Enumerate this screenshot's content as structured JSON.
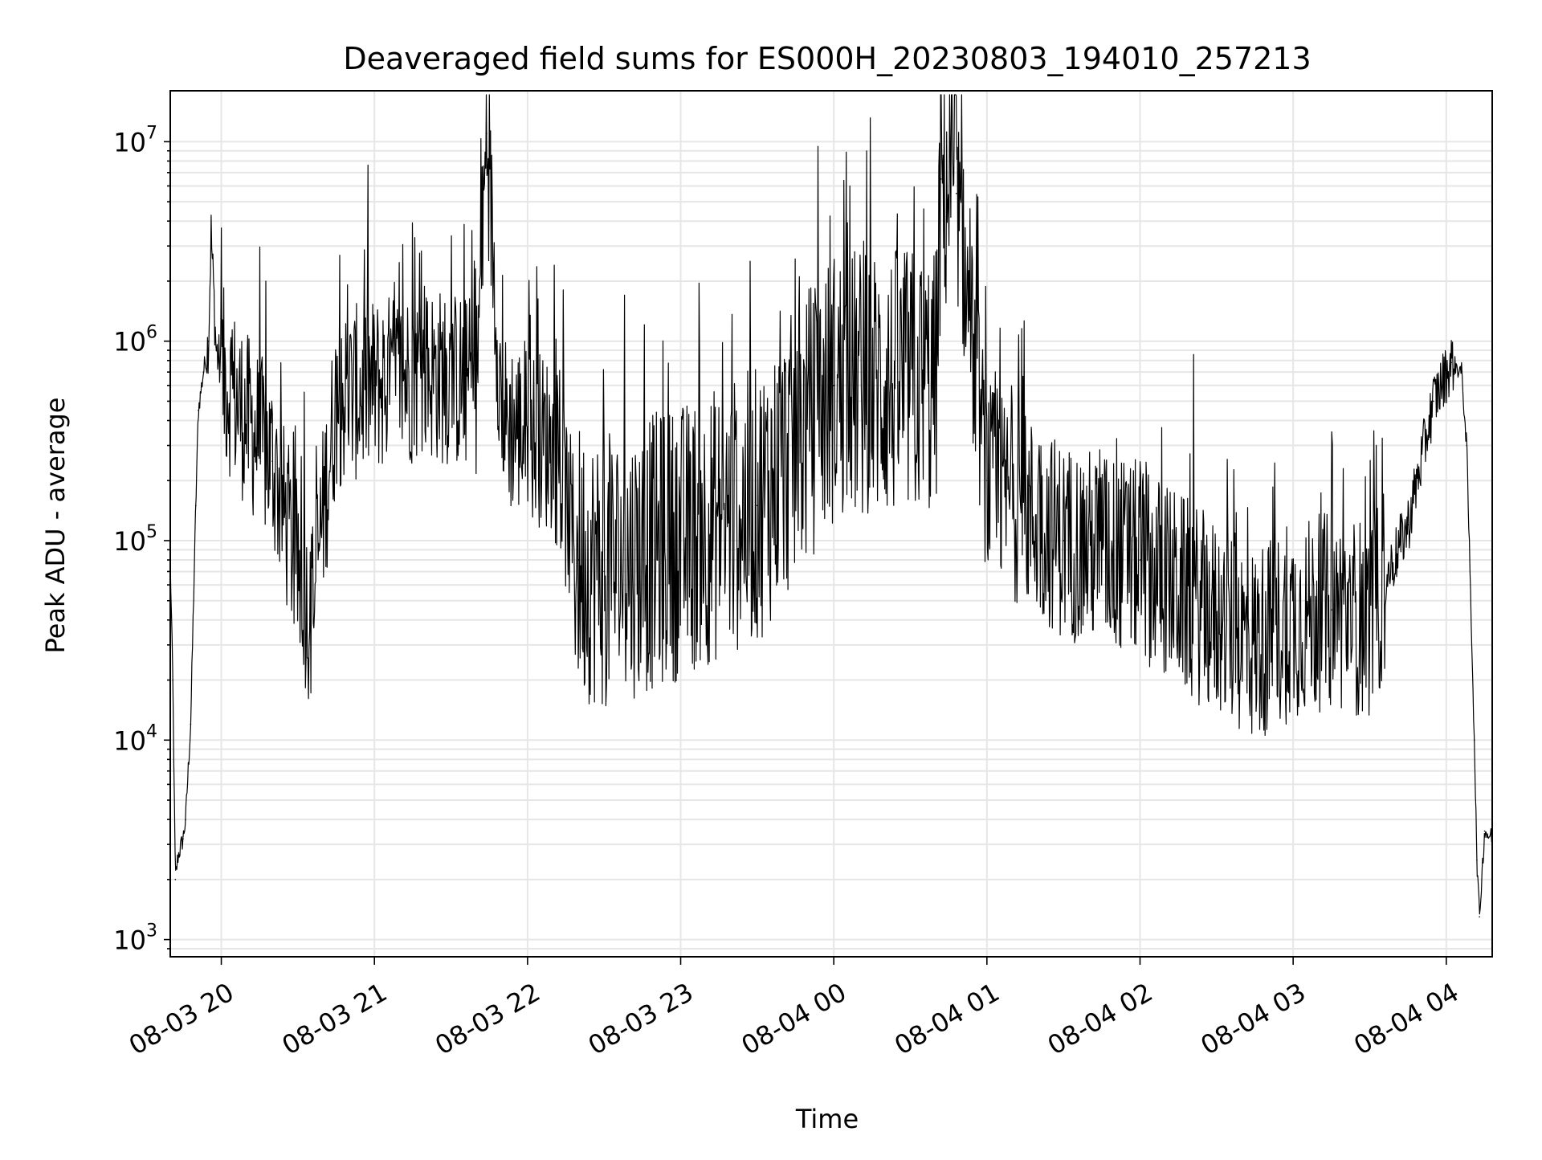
{
  "colors": {
    "background": "#ffffff",
    "line": "#000000",
    "grid": "#e6e6e6",
    "axes": "#000000"
  },
  "chart_data": {
    "type": "line",
    "title": "Deaveraged field sums for ES000H_20230803_194010_257213",
    "xlabel": "Time",
    "ylabel": "Peak ADU - average",
    "yscale": "log",
    "ylim": [
      820,
      18000000
    ],
    "xlim": [
      "2023-08-03 19:40",
      "2023-08-04 04:18"
    ],
    "grid": "on (major and minor)",
    "legend": "none",
    "x_ticks": [
      "08-03 20",
      "08-03 21",
      "08-03 22",
      "08-03 23",
      "08-04 00",
      "08-04 01",
      "08-04 02",
      "08-04 03",
      "08-04 04"
    ],
    "y_ticks": [
      {
        "value": 1000,
        "base": "10",
        "exp": "3"
      },
      {
        "value": 10000,
        "base": "10",
        "exp": "4"
      },
      {
        "value": 100000,
        "base": "10",
        "exp": "5"
      },
      {
        "value": 1000000,
        "base": "10",
        "exp": "6"
      },
      {
        "value": 10000000,
        "base": "10",
        "exp": "7"
      }
    ],
    "series": [
      {
        "values": [
          [
            "2023-08-03 19:40",
            80000
          ],
          [
            "2023-08-03 19:41",
            20000
          ],
          [
            "2023-08-03 19:42",
            2000
          ],
          [
            "2023-08-03 19:43",
            2600
          ],
          [
            "2023-08-03 19:45",
            3200
          ],
          [
            "2023-08-03 19:46",
            4000
          ],
          [
            "2023-08-03 19:48",
            12000
          ],
          [
            "2023-08-03 19:50",
            150000
          ],
          [
            "2023-08-03 19:51",
            450000
          ],
          [
            "2023-08-03 19:53",
            700000
          ],
          [
            "2023-08-03 19:55",
            1000000
          ],
          [
            "2023-08-03 19:56",
            3500000
          ],
          [
            "2023-08-03 19:58",
            900000
          ],
          [
            "2023-08-03 20:00",
            700000
          ],
          [
            "2023-08-03 20:10",
            400000
          ],
          [
            "2023-08-03 20:20",
            250000
          ],
          [
            "2023-08-03 20:30",
            70000
          ],
          [
            "2023-08-03 20:35",
            40000
          ],
          [
            "2023-08-03 20:45",
            500000
          ],
          [
            "2023-08-03 21:00",
            600000
          ],
          [
            "2023-08-03 21:20",
            700000
          ],
          [
            "2023-08-03 21:40",
            600000
          ],
          [
            "2023-08-03 21:44",
            11000000
          ],
          [
            "2023-08-03 21:50",
            400000
          ],
          [
            "2023-08-03 22:10",
            300000
          ],
          [
            "2023-08-03 22:20",
            80000
          ],
          [
            "2023-08-03 22:30",
            70000
          ],
          [
            "2023-08-03 23:00",
            100000
          ],
          [
            "2023-08-03 23:30",
            150000
          ],
          [
            "2023-08-04 00:00",
            600000
          ],
          [
            "2023-08-04 00:40",
            600000
          ],
          [
            "2023-08-04 00:42",
            6500000
          ],
          [
            "2023-08-04 00:48",
            5500000
          ],
          [
            "2023-08-04 01:00",
            200000
          ],
          [
            "2023-08-04 01:30",
            100000
          ],
          [
            "2023-08-04 02:00",
            80000
          ],
          [
            "2023-08-04 02:30",
            40000
          ],
          [
            "2023-08-04 02:45",
            30000
          ],
          [
            "2023-08-04 03:00",
            40000
          ],
          [
            "2023-08-04 03:15",
            45000
          ],
          [
            "2023-08-04 03:30",
            40000
          ],
          [
            "2023-08-04 03:45",
            120000
          ],
          [
            "2023-08-04 03:55",
            500000
          ],
          [
            "2023-08-04 04:02",
            780000
          ],
          [
            "2023-08-04 04:06",
            700000
          ],
          [
            "2023-08-04 04:08",
            300000
          ],
          [
            "2023-08-04 04:11",
            10000
          ],
          [
            "2023-08-04 04:12",
            2500
          ],
          [
            "2023-08-04 04:13",
            1300
          ],
          [
            "2023-08-04 04:15",
            3500
          ],
          [
            "2023-08-04 04:18",
            3200
          ]
        ]
      }
    ]
  }
}
